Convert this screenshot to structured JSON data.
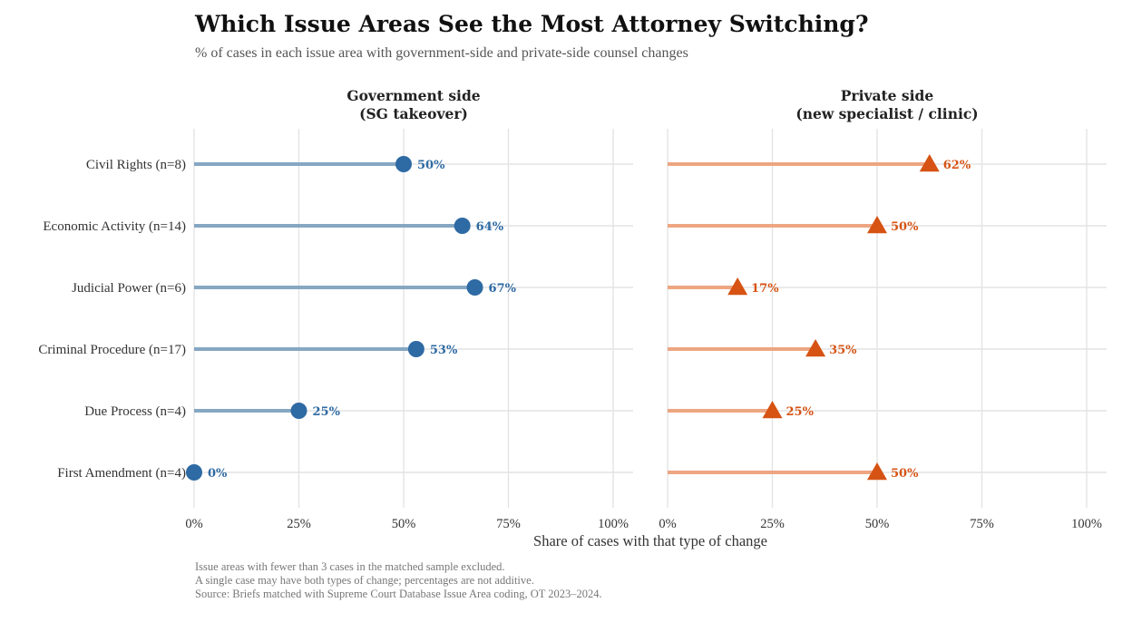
{
  "title": "Which Issue Areas See the Most Attorney Switching?",
  "subtitle": "% of cases in each issue area with government-side and private-side counsel changes",
  "notes": [
    "Issue areas with fewer than 3 cases in the matched sample excluded.",
    "A single case may have both types of change; percentages are not additive.",
    "Source: Briefs matched with Supreme Court Database Issue Area coding, OT 2023–2024."
  ],
  "colors": {
    "government": "#2e6aa3",
    "government_stem": "#86a7c2",
    "private": "#d65313",
    "private_stem": "#eda681"
  },
  "chart_data": {
    "type": "lollipop",
    "categories": [
      "Civil Rights (n=8)",
      "Economic Activity (n=14)",
      "Judicial Power (n=6)",
      "Criminal Procedure (n=17)",
      "Due Process (n=4)",
      "First Amendment (n=4)"
    ],
    "panels": [
      {
        "title_line1": "Government side",
        "title_line2": "(SG takeover)",
        "marker": "circle",
        "values": [
          50,
          64,
          67,
          53,
          25,
          0
        ],
        "labels": [
          "50%",
          "64%",
          "67%",
          "53%",
          "25%",
          "0%"
        ]
      },
      {
        "title_line1": "Private side",
        "title_line2": "(new specialist / clinic)",
        "marker": "triangle",
        "values": [
          62.5,
          50,
          16.7,
          35.3,
          25,
          50
        ],
        "labels": [
          "62%",
          "50%",
          "17%",
          "35%",
          "25%",
          "50%"
        ]
      }
    ],
    "xticks": [
      0,
      25,
      50,
      75,
      100
    ],
    "xtick_labels": [
      "0%",
      "25%",
      "50%",
      "75%",
      "100%"
    ],
    "xlim": [
      0,
      105
    ],
    "xlabel": "Share of cases with that type of change",
    "grid": true
  }
}
